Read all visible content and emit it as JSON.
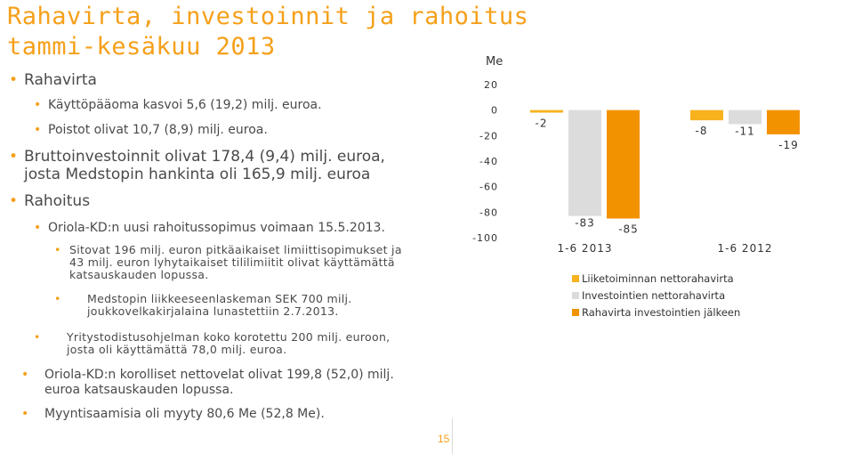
{
  "slide": {
    "title_line1": "Rahavirta, investoinnit ja rahoitus",
    "title_line2": "tammi-kesäkuu 2013",
    "page_number": "15"
  },
  "bullets": [
    {
      "level": 1,
      "text": "Rahavirta"
    },
    {
      "level": 2,
      "text": "Käyttöpääoma kasvoi 5,6 (19,2) milj. euroa."
    },
    {
      "level": 2,
      "text": "Poistot olivat 10,7 (8,9) milj. euroa."
    },
    {
      "level": 1,
      "text": "Bruttoinvestoinnit olivat 178,4 (9,4) milj. euroa,"
    },
    {
      "level": 1,
      "text": "josta Medstopin hankinta oli 165,9 milj. euroa"
    },
    {
      "level": 1,
      "text": "Rahoitus"
    },
    {
      "level": 2,
      "text": "Oriola-KD:n uusi rahoitussopimus voimaan 15.5.2013."
    },
    {
      "level": 3,
      "text": "Sitovat 196 milj. euron pitkäaikaiset limiittisopimukset ja"
    },
    {
      "level": 3,
      "text": "43 milj. euron lyhytaikaiset tililimiitit olivat käyttämättä"
    },
    {
      "level": 3,
      "text": "katsauskauden lopussa."
    },
    {
      "level": 3,
      "text": "Medstopin liikkeeseenlaskeman SEK 700 milj."
    },
    {
      "level": 3,
      "text": "joukkovelkakirjalaina lunastettiin 2.7.2013."
    },
    {
      "level": 2,
      "text": "Yritystodistusohjelman koko korotettu 200 milj. euroon,"
    },
    {
      "level": 2,
      "text": "josta oli käyttämättä 78,0 milj. euroa."
    },
    {
      "level": 2,
      "text": "Oriola-KD:n korolliset nettovelat olivat 199,8 (52,0)  milj."
    },
    {
      "level": 2,
      "text": "euroa katsauskauden lopussa."
    },
    {
      "level": 2,
      "text": "Myyntisaamisia oli myyty 80,6 Me (52,8 Me)."
    }
  ],
  "chart_data": {
    "type": "bar",
    "unit_label": "Me",
    "categories": [
      "1-6 2013",
      "1-6 2012"
    ],
    "ylim": [
      -100,
      20
    ],
    "yticks": [
      20,
      0,
      -20,
      -40,
      -60,
      -80,
      -100
    ],
    "grid": false,
    "legend_position": "bottom-right",
    "series": [
      {
        "name": "Liiketoiminnan nettorahavirta",
        "values": [
          -2,
          -8
        ],
        "labels": [
          "-2",
          "-8"
        ],
        "color": "#f7b21e"
      },
      {
        "name": "Investointien nettorahavirta",
        "values": [
          -83,
          -11
        ],
        "labels": [
          "-83",
          "-11"
        ],
        "color": "#dcdcdc"
      },
      {
        "name": "Rahavirta investointien jälkeen",
        "values": [
          -85,
          -19
        ],
        "labels": [
          "-85",
          "-19"
        ],
        "color": "#f39200"
      }
    ]
  }
}
